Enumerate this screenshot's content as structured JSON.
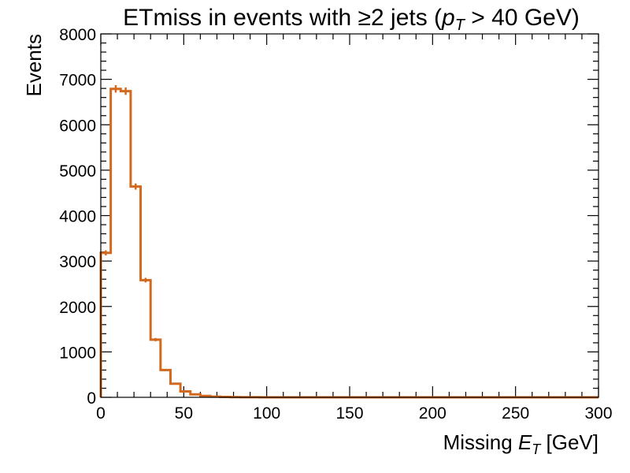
{
  "chart_data": {
    "type": "histogram-step",
    "title": {
      "prefix": "ETmiss in events with ≥2 jets (",
      "var": "p",
      "sub": "T",
      "suffix": " > 40 GeV)"
    },
    "xlabel": {
      "prefix": "Missing ",
      "var": "E",
      "sub": "T",
      "suffix": " [GeV]"
    },
    "ylabel": "Events",
    "xlim": [
      0,
      300
    ],
    "ylim": [
      0,
      8000
    ],
    "x_ticks": [
      0,
      50,
      100,
      150,
      200,
      250,
      300
    ],
    "y_ticks": [
      0,
      1000,
      2000,
      3000,
      4000,
      5000,
      6000,
      7000,
      8000
    ],
    "bin_width": 6,
    "bin_edges_start": 0,
    "values": [
      3180,
      6790,
      6740,
      4640,
      2580,
      1270,
      600,
      300,
      130,
      65,
      30,
      15,
      8,
      5,
      3,
      2,
      1,
      1
    ],
    "errors": [
      56,
      82,
      82,
      68,
      51,
      36,
      24,
      17,
      11,
      8,
      5,
      4,
      3,
      2,
      2,
      1,
      1,
      1
    ],
    "color": "#d2691e",
    "grid": false
  }
}
